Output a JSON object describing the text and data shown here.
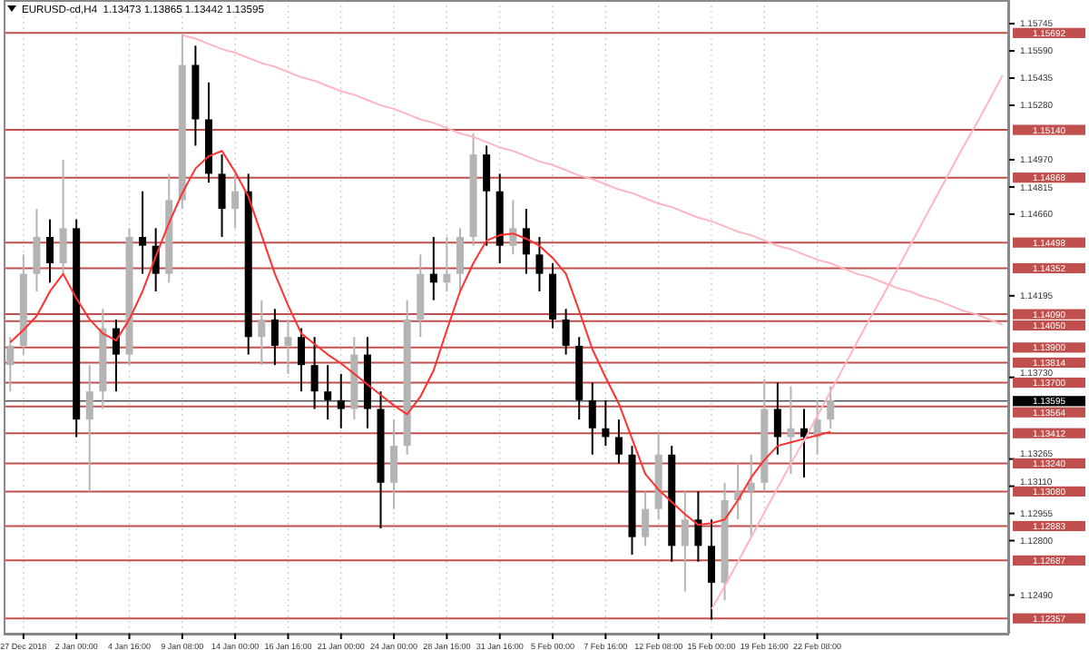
{
  "chart_data": {
    "type": "candlestick",
    "title": "EURUSD-cd,H4  1.13473 1.13865 1.13442 1.13595",
    "grid": "x",
    "categories": [
      null,
      "27 Dec 2018",
      null,
      null,
      null,
      "2 Jan 00:00",
      null,
      null,
      null,
      "4 Jan 16:00",
      null,
      null,
      null,
      "9 Jan 08:00",
      null,
      null,
      null,
      "14 Jan 00:00",
      null,
      null,
      null,
      "16 Jan 16:00",
      null,
      null,
      null,
      "21 Jan 00:00",
      null,
      null,
      null,
      "24 Jan 00:00",
      null,
      null,
      null,
      "28 Jan 16:00",
      null,
      null,
      null,
      "31 Jan 16:00",
      null,
      null,
      null,
      "5 Feb 00:00",
      null,
      null,
      null,
      "7 Feb 16:00",
      null,
      null,
      null,
      "12 Feb 08:00",
      null,
      null,
      null,
      "15 Feb 00:00",
      null,
      null,
      null,
      "19 Feb 16:00",
      null,
      null,
      null,
      "22 Feb 08:00",
      null,
      null,
      null,
      null,
      null,
      null,
      null,
      null,
      null,
      null,
      null,
      null,
      null,
      null
    ],
    "ylim": [
      1.1227,
      1.1588
    ],
    "yticks": [
      1.15745,
      {
        "value": 1.1559,
        "label": "1.15590"
      },
      1.15435,
      {
        "value": 1.1528,
        "label": "1.15280"
      },
      {
        "value": 1.1497,
        "label": "1.14970"
      },
      1.14815,
      {
        "value": 1.1466,
        "label": "1.14660"
      },
      1.14195,
      {
        "value": 1.1373,
        "label": "1.13730"
      },
      1.13265,
      {
        "value": 1.1311,
        "label": "1.13110"
      },
      1.12955,
      {
        "value": 1.128,
        "label": "1.12800"
      },
      {
        "value": 1.1249,
        "label": "1.12490"
      }
    ],
    "series": [
      {
        "ohlc": [
          [
            1.138,
            1.1396,
            1.1365,
            1.1391
          ],
          [
            1.1391,
            1.1443,
            1.1386,
            1.1432
          ],
          [
            1.1432,
            1.1469,
            1.1422,
            1.1453
          ],
          [
            1.1453,
            1.1463,
            1.1427,
            1.1438
          ],
          [
            1.1438,
            1.1497,
            1.1432,
            1.1458
          ],
          [
            1.1458,
            1.1463,
            1.1339,
            1.1349
          ],
          [
            1.1349,
            1.138,
            1.1308,
            1.1365
          ],
          [
            1.1365,
            1.1412,
            1.1355,
            1.1401
          ],
          [
            1.1401,
            1.1406,
            1.1365,
            1.1386
          ],
          [
            1.1386,
            1.1458,
            1.138,
            1.1453
          ],
          [
            1.1453,
            1.1479,
            1.1432,
            1.1448
          ],
          [
            1.1448,
            1.1458,
            1.1422,
            1.1432
          ],
          [
            1.1432,
            1.1489,
            1.1427,
            1.1474
          ],
          [
            1.1474,
            1.1569,
            1.1469,
            1.1551
          ],
          [
            1.1551,
            1.1562,
            1.1505,
            1.152
          ],
          [
            1.152,
            1.1541,
            1.1484,
            1.1489
          ],
          [
            1.1489,
            1.15,
            1.1453,
            1.1469
          ],
          [
            1.1469,
            1.1489,
            1.1458,
            1.1479
          ],
          [
            1.1479,
            1.1489,
            1.1386,
            1.1396
          ],
          [
            1.1396,
            1.1417,
            1.138,
            1.1406
          ],
          [
            1.1406,
            1.1412,
            1.138,
            1.1391
          ],
          [
            1.1391,
            1.1406,
            1.1375,
            1.1396
          ],
          [
            1.1396,
            1.1401,
            1.1365,
            1.138
          ],
          [
            1.138,
            1.1396,
            1.1355,
            1.1365
          ],
          [
            1.1365,
            1.138,
            1.1349,
            1.136
          ],
          [
            1.136,
            1.1375,
            1.1344,
            1.1355
          ],
          [
            1.1355,
            1.1396,
            1.1349,
            1.1386
          ],
          [
            1.1386,
            1.1396,
            1.1344,
            1.1355
          ],
          [
            1.1355,
            1.1365,
            1.1287,
            1.1313
          ],
          [
            1.1313,
            1.1349,
            1.1298,
            1.1334
          ],
          [
            1.1334,
            1.1417,
            1.1329,
            1.1406
          ],
          [
            1.1406,
            1.1443,
            1.1396,
            1.1432
          ],
          [
            1.1432,
            1.1453,
            1.1417,
            1.1427
          ],
          [
            1.1427,
            1.1453,
            1.1422,
            1.1432
          ],
          [
            1.1432,
            1.1458,
            1.1422,
            1.1453
          ],
          [
            1.1453,
            1.1512,
            1.1448,
            1.15
          ],
          [
            1.15,
            1.1505,
            1.1448,
            1.1479
          ],
          [
            1.1479,
            1.1489,
            1.1438,
            1.1448
          ],
          [
            1.1448,
            1.1474,
            1.1443,
            1.1458
          ],
          [
            1.1458,
            1.1469,
            1.1432,
            1.1443
          ],
          [
            1.1443,
            1.1453,
            1.1422,
            1.1432
          ],
          [
            1.1432,
            1.1438,
            1.1401,
            1.1406
          ],
          [
            1.1406,
            1.1412,
            1.1386,
            1.1391
          ],
          [
            1.1391,
            1.1396,
            1.1349,
            1.136
          ],
          [
            1.136,
            1.137,
            1.1329,
            1.1344
          ],
          [
            1.1344,
            1.136,
            1.1334,
            1.1339
          ],
          [
            1.1339,
            1.1349,
            1.1324,
            1.1329
          ],
          [
            1.1329,
            1.1334,
            1.1272,
            1.1282
          ],
          [
            1.1282,
            1.1308,
            1.1277,
            1.1298
          ],
          [
            1.1298,
            1.1341,
            1.1292,
            1.1329
          ],
          [
            1.1329,
            1.1334,
            1.1268,
            1.1277
          ],
          [
            1.1277,
            1.1308,
            1.1251,
            1.1292
          ],
          [
            1.1292,
            1.1308,
            1.1268,
            1.1277
          ],
          [
            1.1277,
            1.1292,
            1.1235,
            1.1256
          ],
          [
            1.1256,
            1.1313,
            1.1246,
            1.1303
          ],
          [
            1.1303,
            1.1324,
            1.1292,
            1.1308
          ],
          [
            1.1308,
            1.1329,
            1.1282,
            1.1313
          ],
          [
            1.1313,
            1.1372,
            1.1308,
            1.1355
          ],
          [
            1.1355,
            1.137,
            1.1329,
            1.1339
          ],
          [
            1.1339,
            1.1368,
            1.1318,
            1.1344
          ],
          [
            1.1344,
            1.1355,
            1.1316,
            1.1339
          ],
          [
            1.1339,
            1.136,
            1.1329,
            1.1349
          ],
          [
            1.1349,
            1.1368,
            1.1344,
            1.136
          ],
          null,
          null,
          null,
          null,
          null,
          null,
          null,
          null,
          null,
          null,
          null,
          null,
          null
        ],
        "colors": [
          "#b4b4b4",
          "#b4b4b4",
          "#b4b4b4",
          "#000000",
          "#b4b4b4",
          "#000000",
          "#b4b4b4",
          "#b4b4b4",
          "#000000",
          "#b4b4b4",
          "#000000",
          "#000000",
          "#b4b4b4",
          "#b4b4b4",
          "#000000",
          "#000000",
          "#000000",
          "#b4b4b4",
          "#000000",
          "#b4b4b4",
          "#000000",
          "#b4b4b4",
          "#000000",
          "#000000",
          "#000000",
          "#000000",
          "#b4b4b4",
          "#000000",
          "#000000",
          "#b4b4b4",
          "#b4b4b4",
          "#b4b4b4",
          "#000000",
          "#b4b4b4",
          "#b4b4b4",
          "#b4b4b4",
          "#000000",
          "#000000",
          "#b4b4b4",
          "#000000",
          "#000000",
          "#000000",
          "#000000",
          "#000000",
          "#000000",
          "#000000",
          "#000000",
          "#000000",
          "#b4b4b4",
          "#b4b4b4",
          "#000000",
          "#b4b4b4",
          "#000000",
          "#000000",
          "#b4b4b4",
          "#b4b4b4",
          "#b4b4b4",
          "#b4b4b4",
          "#000000",
          "#b4b4b4",
          "#000000",
          "#b4b4b4",
          "#b4b4b4",
          null,
          null,
          null,
          null,
          null,
          null,
          null,
          null,
          null,
          null,
          null,
          null,
          null
        ]
      },
      {
        "type": "line",
        "color": "#ff3030",
        "values": [
          1.1393,
          1.14,
          1.1408,
          1.1422,
          1.1432,
          1.1418,
          1.1406,
          1.1398,
          1.1394,
          1.1406,
          1.1422,
          1.1442,
          1.1461,
          1.1478,
          1.1492,
          1.1499,
          1.1502,
          1.149,
          1.1476,
          1.1454,
          1.1432,
          1.1414,
          1.1398,
          1.1392,
          1.1386,
          1.1381,
          1.1375,
          1.1369,
          1.1363,
          1.1357,
          1.1352,
          1.1362,
          1.1377,
          1.14,
          1.1422,
          1.1438,
          1.1451,
          1.1454,
          1.1455,
          1.1452,
          1.1448,
          1.1441,
          1.1432,
          1.1411,
          1.1389,
          1.1373,
          1.1358,
          1.1338,
          1.1318,
          1.1309,
          1.1302,
          1.1295,
          1.1289,
          1.129,
          1.1292,
          1.1303,
          1.1316,
          1.1326,
          1.1334,
          1.1336,
          1.1338,
          1.134,
          1.1342,
          null,
          null,
          null,
          null,
          null,
          null,
          null,
          null,
          null,
          null,
          null,
          null,
          null
        ]
      },
      {
        "type": "line",
        "color": "#ffb6c1",
        "values": [
          null,
          null,
          null,
          null,
          null,
          null,
          null,
          null,
          null,
          null,
          null,
          null,
          null,
          1.1568,
          1.1566,
          1.1563,
          1.156,
          1.1558,
          1.1555,
          1.1552,
          1.155,
          1.1547,
          1.1544,
          1.1542,
          1.1539,
          1.1536,
          1.1534,
          1.1531,
          1.1528,
          1.1526,
          1.1523,
          1.152,
          1.1518,
          1.1515,
          1.1512,
          1.151,
          1.1507,
          1.1504,
          1.1502,
          1.1499,
          1.1496,
          1.1494,
          1.1491,
          1.1488,
          1.1486,
          1.1483,
          1.148,
          1.1478,
          1.1475,
          1.1472,
          1.147,
          1.1467,
          1.1464,
          1.1462,
          1.1459,
          1.1456,
          1.1454,
          1.1451,
          1.1448,
          1.1446,
          1.1443,
          1.144,
          1.1438,
          1.1435,
          1.1432,
          1.143,
          1.1427,
          1.1424,
          1.1422,
          1.1419,
          1.1417,
          1.1414,
          1.1411,
          1.1409,
          1.1406,
          1.1403
        ]
      },
      {
        "type": "line",
        "color": "#ffb6c1",
        "values": [
          null,
          null,
          null,
          null,
          null,
          null,
          null,
          null,
          null,
          null,
          null,
          null,
          null,
          null,
          null,
          null,
          null,
          null,
          null,
          null,
          null,
          null,
          null,
          null,
          null,
          null,
          null,
          null,
          null,
          null,
          null,
          null,
          null,
          null,
          null,
          null,
          null,
          null,
          null,
          null,
          null,
          null,
          null,
          null,
          null,
          null,
          null,
          null,
          null,
          null,
          null,
          null,
          null,
          1.1241,
          1.1254,
          1.1268,
          1.1282,
          1.1296,
          1.131,
          1.1324,
          1.1337,
          1.1351,
          1.1365,
          1.1379,
          1.1393,
          1.1407,
          1.142,
          1.1434,
          1.1448,
          1.1462,
          1.1476,
          1.149,
          1.1504,
          1.1517,
          1.1531,
          1.1545
        ]
      }
    ],
    "ref_lines": [
      {
        "axis": "y",
        "value": 1.15692,
        "label": "1.15692",
        "color": "#c0504d"
      },
      {
        "axis": "y",
        "value": 1.1514,
        "label": "1.15140",
        "color": "#c0504d"
      },
      {
        "axis": "y",
        "value": 1.14868,
        "label": "1.14868",
        "color": "#c0504d"
      },
      {
        "axis": "y",
        "value": 1.14498,
        "label": "1.14498",
        "color": "#c0504d"
      },
      {
        "axis": "y",
        "value": 1.14352,
        "label": "1.14352",
        "color": "#c0504d"
      },
      {
        "axis": "y",
        "value": 1.1409,
        "label": "1.14090",
        "color": "#c0504d"
      },
      {
        "axis": "y",
        "value": 1.1405,
        "label": "1.14050",
        "color": "#c0504d"
      },
      {
        "axis": "y",
        "value": 1.139,
        "label": "1.13900",
        "color": "#c0504d"
      },
      {
        "axis": "y",
        "value": 1.13814,
        "label": "1.13814",
        "color": "#c0504d"
      },
      {
        "axis": "y",
        "value": 1.137,
        "label": "1.13700",
        "color": "#c0504d"
      },
      {
        "axis": "y",
        "value": 1.13595,
        "label": "1.13595",
        "color": "#000000"
      },
      {
        "axis": "y",
        "value": 1.13564,
        "label": "1.13564",
        "color": "#c0504d"
      },
      {
        "axis": "y",
        "value": 1.13412,
        "label": "1.13412",
        "color": "#c0504d"
      },
      {
        "axis": "y",
        "value": 1.1324,
        "label": "1.13240",
        "color": "#c0504d"
      },
      {
        "axis": "y",
        "value": 1.1308,
        "label": "1.13080",
        "color": "#c0504d"
      },
      {
        "axis": "y",
        "value": 1.12883,
        "label": "1.12883",
        "color": "#c0504d"
      },
      {
        "axis": "y",
        "value": 1.12687,
        "label": "1.12687",
        "color": "#c0504d"
      },
      {
        "axis": "y",
        "value": 1.12357,
        "label": "1.12357",
        "color": "#c0504d"
      }
    ]
  }
}
